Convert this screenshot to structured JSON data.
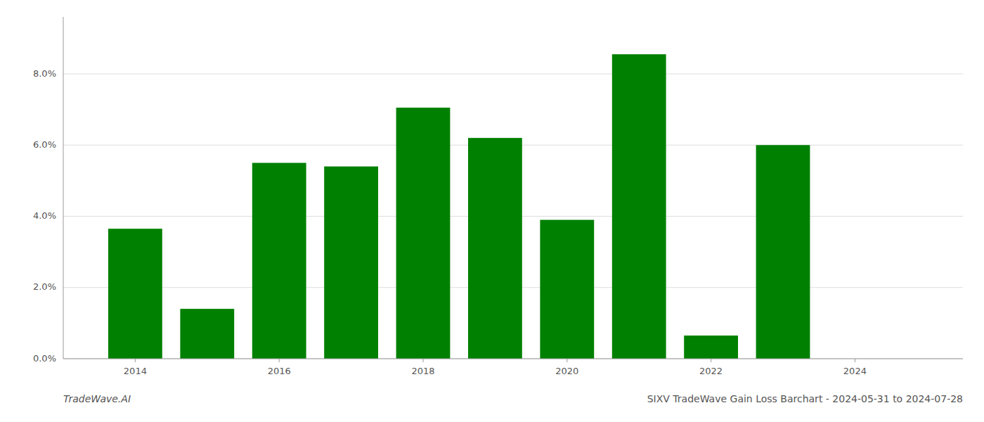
{
  "chart_data": {
    "type": "bar",
    "title": "SIXV TradeWave Gain Loss Barchart - 2024-05-31 to 2024-07-28",
    "annotations": [
      "TradeWave.AI"
    ],
    "x": [
      2014,
      2015,
      2016,
      2017,
      2018,
      2019,
      2020,
      2021,
      2022,
      2023
    ],
    "values": [
      0.0365,
      0.014,
      0.055,
      0.054,
      0.0705,
      0.062,
      0.039,
      0.0855,
      0.0065,
      0.06
    ],
    "color": "#008000",
    "xlim": [
      2013.0,
      2025.5
    ],
    "ylim": [
      0.0,
      0.096
    ],
    "xticks": [
      2014,
      2016,
      2018,
      2020,
      2022,
      2024
    ],
    "yticks": [
      {
        "value": 0.0,
        "label": "0.0%"
      },
      {
        "value": 0.02,
        "label": "2.0%"
      },
      {
        "value": 0.04,
        "label": "4.0%"
      },
      {
        "value": 0.06,
        "label": "6.0%"
      },
      {
        "value": 0.08,
        "label": "8.0%"
      }
    ],
    "grid": true
  }
}
